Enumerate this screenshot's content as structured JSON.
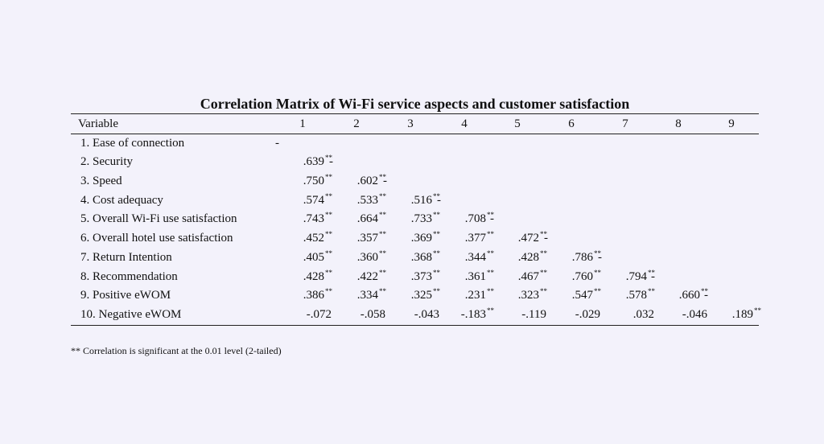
{
  "title": "Correlation Matrix of Wi-Fi service aspects and customer satisfaction",
  "header": {
    "variable_label": "Variable",
    "columns": [
      "1",
      "2",
      "3",
      "4",
      "5",
      "6",
      "7",
      "8",
      "9"
    ]
  },
  "rows": [
    {
      "label": "1. Ease of connection",
      "values": []
    },
    {
      "label": "2. Security",
      "values": [
        ".639**"
      ]
    },
    {
      "label": "3. Speed",
      "values": [
        ".750**",
        ".602**"
      ]
    },
    {
      "label": "4. Cost adequacy",
      "values": [
        ".574**",
        ".533**",
        ".516**"
      ]
    },
    {
      "label": "5. Overall Wi-Fi use satisfaction",
      "values": [
        ".743**",
        ".664**",
        ".733**",
        ".708**"
      ]
    },
    {
      "label": "6. Overall hotel use satisfaction",
      "values": [
        ".452**",
        ".357**",
        ".369**",
        ".377**",
        ".472**"
      ]
    },
    {
      "label": "7. Return Intention",
      "values": [
        ".405**",
        ".360**",
        ".368**",
        ".344**",
        ".428**",
        ".786**"
      ]
    },
    {
      "label": "8. Recommendation",
      "values": [
        ".428**",
        ".422**",
        ".373**",
        ".361**",
        ".467**",
        ".760**",
        ".794**"
      ]
    },
    {
      "label": "9. Positive eWOM",
      "values": [
        ".386**",
        ".334**",
        ".325**",
        ".231**",
        ".323**",
        ".547**",
        ".578**",
        ".660**"
      ]
    },
    {
      "label": "10. Negative eWOM",
      "values": [
        "-.072",
        "-.058",
        "-.043",
        "-.183**",
        "-.119",
        "-.029",
        ".032",
        "-.046",
        ".189**"
      ]
    }
  ],
  "diagonal_mark": "-",
  "footnote": "** Correlation is significant at the 0.01 level (2-tailed)"
}
